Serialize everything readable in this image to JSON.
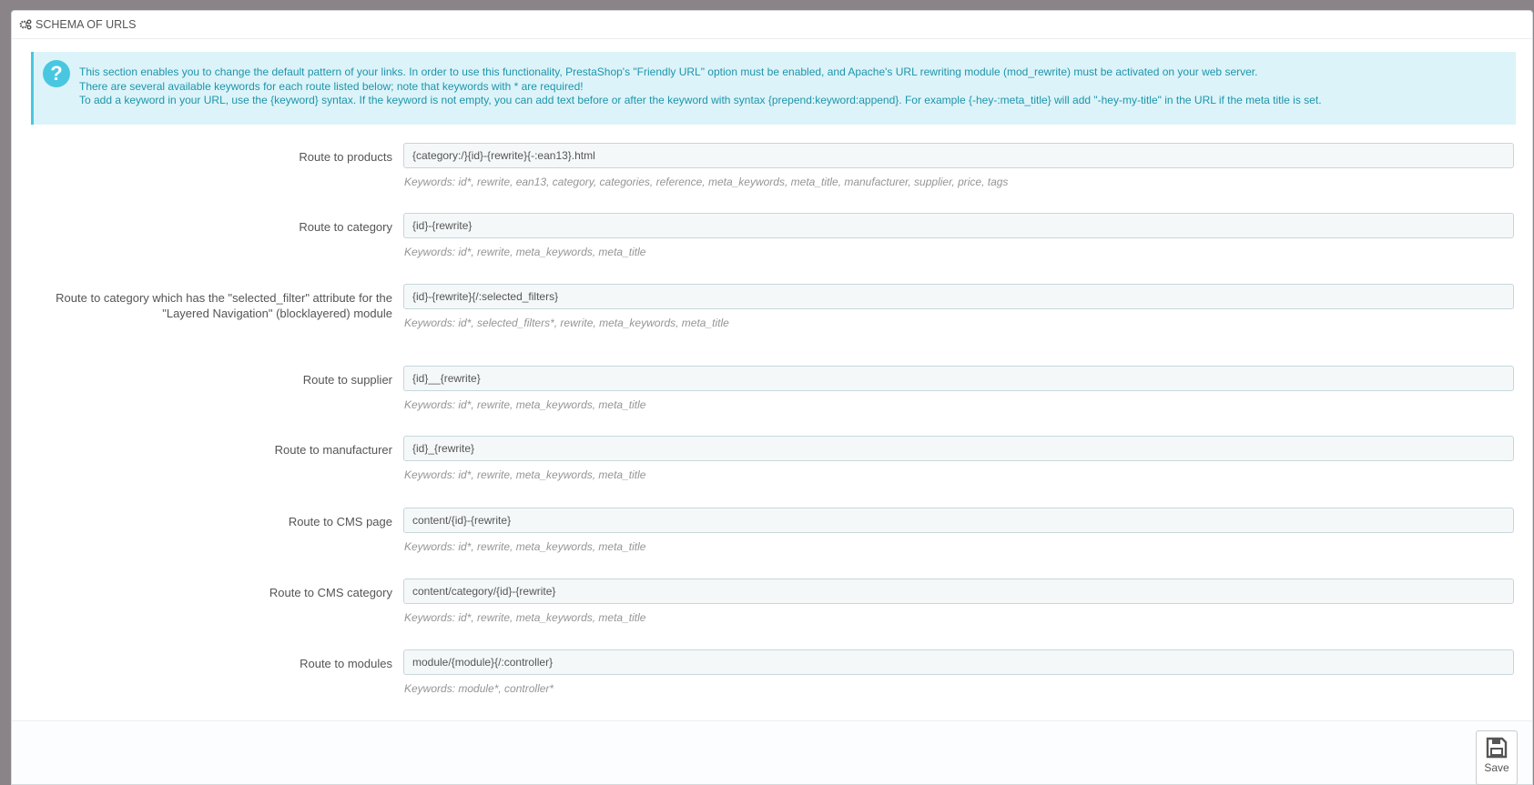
{
  "panel": {
    "title": "SCHEMA OF URLS",
    "icon": "cogs-icon"
  },
  "alert": {
    "icon": "question-circle-icon",
    "lines": [
      "This section enables you to change the default pattern of your links. In order to use this functionality, PrestaShop's \"Friendly URL\" option must be enabled, and Apache's URL rewriting module (mod_rewrite) must be activated on your web server.",
      "There are several available keywords for each route listed below; note that keywords with * are required!",
      "To add a keyword in your URL, use the {keyword} syntax. If the keyword is not empty, you can add text before or after the keyword with syntax {prepend:keyword:append}. For example {-hey-:meta_title} will add \"-hey-my-title\" in the URL if the meta title is set."
    ],
    "accent_color": "#4ac7e0"
  },
  "routes": [
    {
      "label": "Route to products",
      "value": "{category:/}{id}-{rewrite}{-:ean13}.html",
      "help": "Keywords: id*, rewrite, ean13, category, categories, reference, meta_keywords, meta_title, manufacturer, supplier, price, tags"
    },
    {
      "label": "Route to category",
      "value": "{id}-{rewrite}",
      "help": "Keywords: id*, rewrite, meta_keywords, meta_title"
    },
    {
      "label": "Route to category which has the \"selected_filter\" attribute for the \"Layered Navigation\" (blocklayered) module",
      "value": "{id}-{rewrite}{/:selected_filters}",
      "help": "Keywords: id*, selected_filters*, rewrite, meta_keywords, meta_title"
    },
    {
      "label": "Route to supplier",
      "value": "{id}__{rewrite}",
      "help": "Keywords: id*, rewrite, meta_keywords, meta_title"
    },
    {
      "label": "Route to manufacturer",
      "value": "{id}_{rewrite}",
      "help": "Keywords: id*, rewrite, meta_keywords, meta_title"
    },
    {
      "label": "Route to CMS page",
      "value": "content/{id}-{rewrite}",
      "help": "Keywords: id*, rewrite, meta_keywords, meta_title"
    },
    {
      "label": "Route to CMS category",
      "value": "content/category/{id}-{rewrite}",
      "help": "Keywords: id*, rewrite, meta_keywords, meta_title"
    },
    {
      "label": "Route to modules",
      "value": "module/{module}{/:controller}",
      "help": "Keywords: module*, controller*"
    }
  ],
  "footer": {
    "save_label": "Save",
    "save_icon": "floppy-disk-icon"
  }
}
